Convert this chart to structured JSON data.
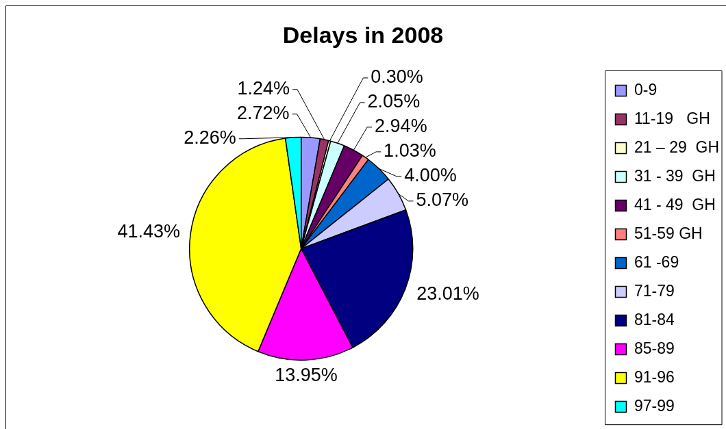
{
  "chart_data": {
    "type": "pie",
    "title": "Delays in 2008",
    "categories": [
      "0-9",
      "11-19   GH",
      "21 – 29  GH",
      "31 - 39  GH",
      "41 - 49  GH",
      "51-59 GH",
      "61 -69",
      "71-79",
      "81-84",
      "85-89",
      "91-96",
      "97-99"
    ],
    "values": [
      2.72,
      1.24,
      0.3,
      2.05,
      2.94,
      1.03,
      4,
      5.07,
      23.01,
      13.95,
      41.43,
      2.26
    ],
    "colors": [
      "#9999ff",
      "#993366",
      "#ffffcc",
      "#ccffff",
      "#660066",
      "#ff8080",
      "#0066cc",
      "#ccccff",
      "#000080",
      "#ff00ff",
      "#ffff00",
      "#00ffff"
    ],
    "value_labels": [
      "2.72%",
      "1.24%",
      "0.30%",
      "2.05%",
      "2.94%",
      "1.03%",
      "4.00%",
      "5.07%",
      "23.01%",
      "13.95%",
      "41.43%",
      "2.26%"
    ],
    "legend": "right"
  }
}
